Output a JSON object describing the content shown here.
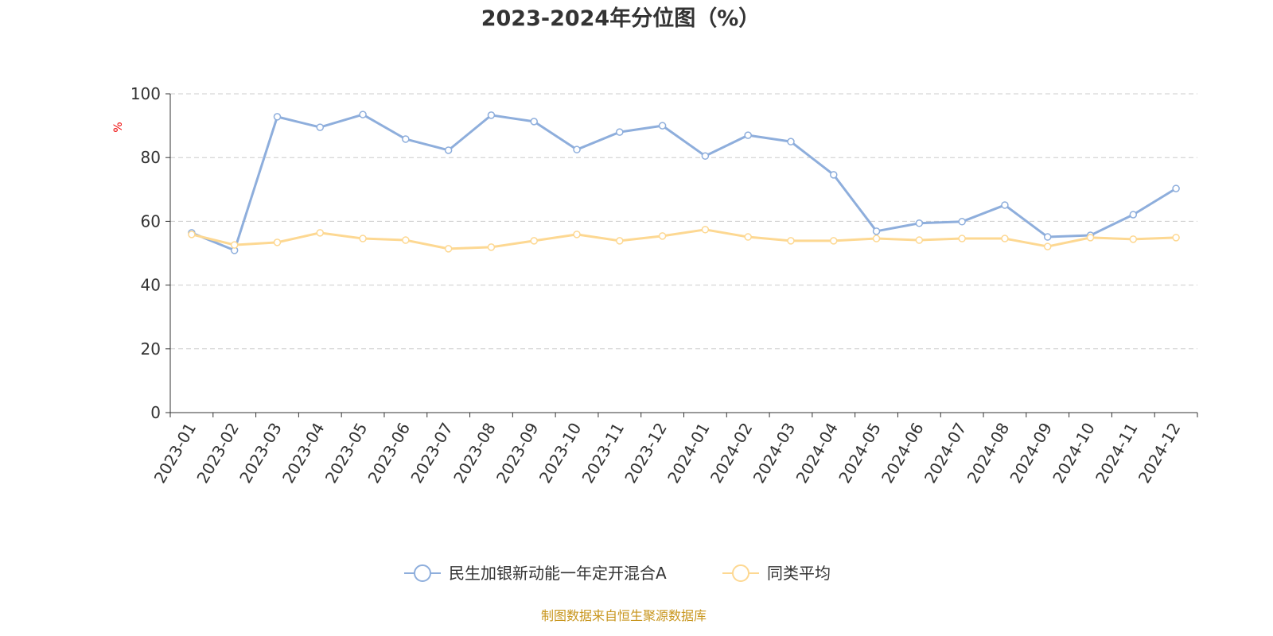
{
  "chart_data": {
    "type": "line",
    "title": "2023-2024年分位图（%）",
    "ylabel": "%",
    "xlabel": "",
    "ylim": [
      0,
      100
    ],
    "yticks": [
      0,
      20,
      40,
      60,
      80,
      100
    ],
    "grid": true,
    "legend_position": "bottom",
    "categories": [
      "2023-01",
      "2023-02",
      "2023-03",
      "2023-04",
      "2023-05",
      "2023-06",
      "2023-07",
      "2023-08",
      "2023-09",
      "2023-10",
      "2023-11",
      "2023-12",
      "2024-01",
      "2024-02",
      "2024-03",
      "2024-04",
      "2024-05",
      "2024-06",
      "2024-07",
      "2024-08",
      "2024-09",
      "2024-10",
      "2024-11",
      "2024-12"
    ],
    "series": [
      {
        "name": "民生加银新动能一年定开混合A",
        "color": "#8eaedc",
        "values": [
          56.4,
          50.9,
          92.8,
          89.5,
          93.5,
          85.8,
          82.3,
          93.3,
          91.3,
          82.5,
          88.0,
          90.0,
          80.5,
          87.0,
          85.0,
          74.6,
          56.9,
          59.4,
          59.9,
          65.1,
          55.1,
          55.6,
          62.1,
          70.3
        ]
      },
      {
        "name": "同类平均",
        "color": "#fdd892",
        "values": [
          55.9,
          52.6,
          53.4,
          56.4,
          54.6,
          54.1,
          51.4,
          51.9,
          53.9,
          55.9,
          53.9,
          55.4,
          57.4,
          55.1,
          53.9,
          53.9,
          54.6,
          54.1,
          54.6,
          54.6,
          52.1,
          54.9,
          54.4,
          54.9
        ]
      }
    ],
    "source": "制图数据来自恒生聚源数据库"
  }
}
